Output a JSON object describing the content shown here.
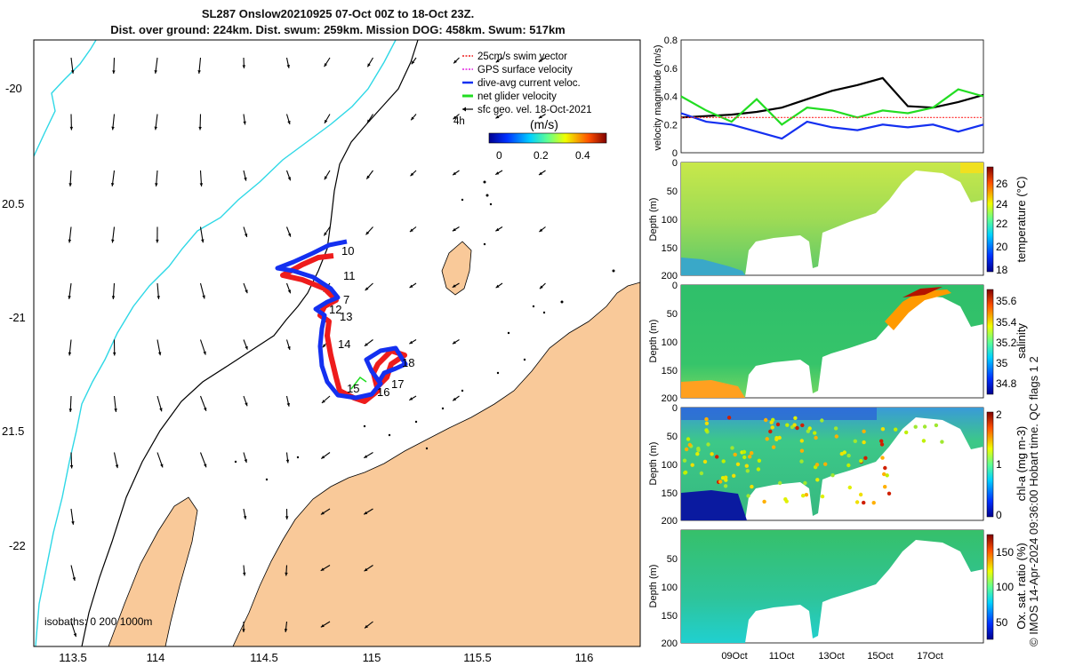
{
  "title": {
    "line1": "SL287 Onslow20210925 07-Oct 00Z to 18-Oct 23Z.",
    "line2": "Dist. over ground: 224km. Dist. swum: 259km. Mission DOG: 458km. Swum: 517km"
  },
  "map": {
    "lon_ticks": [
      "113.5",
      "114",
      "114.5",
      "115",
      "115.5",
      "116"
    ],
    "lat_ticks": [
      "-20",
      "20.5",
      "-21",
      "21.5",
      "-22"
    ],
    "isobath_note": "isobaths: 0   200  1000m",
    "legend": [
      "25cm/s swim vector",
      "GPS surface velocity",
      "dive-avg current veloc.",
      "net glider velocity",
      "sfc geo. vel. 18-Oct-2021"
    ],
    "scale_label": "4h",
    "colorbar_title": "(m/s)",
    "colorbar_ticks": [
      "0",
      "0.2",
      "0.4"
    ],
    "waypoints": [
      "10",
      "11",
      "7",
      "12",
      "13",
      "14",
      "18",
      "17",
      "15",
      "16"
    ],
    "colors": {
      "land": "#f9c999",
      "shelf_isobath": "#000000",
      "coast_isobath": "#2ed8e6",
      "track_red": "#ee1c1c",
      "track_blue": "#1430f0"
    }
  },
  "chart_data": [
    {
      "type": "line",
      "title": "",
      "ylabel": "velocity magnitude (m/s)",
      "ylim": [
        0,
        0.8
      ],
      "y_ticks": [
        "0",
        "0.2",
        "0.4",
        "0.6",
        "0.8"
      ],
      "xlim": [
        "2021-10-07",
        "2021-10-19"
      ],
      "series": [
        {
          "color": "#000000",
          "x": [
            "2021-10-07",
            "2021-10-08",
            "2021-10-09",
            "2021-10-10",
            "2021-10-11",
            "2021-10-12",
            "2021-10-13",
            "2021-10-14",
            "2021-10-15",
            "2021-10-16",
            "2021-10-17",
            "2021-10-18",
            "2021-10-19"
          ],
          "values": [
            0.25,
            0.26,
            0.27,
            0.29,
            0.32,
            0.38,
            0.44,
            0.48,
            0.53,
            0.33,
            0.32,
            0.36,
            0.41
          ]
        },
        {
          "color": "#1430f0",
          "x": [
            "2021-10-07",
            "2021-10-08",
            "2021-10-09",
            "2021-10-10",
            "2021-10-11",
            "2021-10-12",
            "2021-10-13",
            "2021-10-14",
            "2021-10-15",
            "2021-10-16",
            "2021-10-17",
            "2021-10-18",
            "2021-10-19"
          ],
          "values": [
            0.28,
            0.22,
            0.2,
            0.15,
            0.1,
            0.22,
            0.18,
            0.16,
            0.2,
            0.18,
            0.2,
            0.15,
            0.2
          ]
        },
        {
          "color": "#22dd22",
          "x": [
            "2021-10-07",
            "2021-10-08",
            "2021-10-09",
            "2021-10-10",
            "2021-10-11",
            "2021-10-12",
            "2021-10-13",
            "2021-10-14",
            "2021-10-15",
            "2021-10-16",
            "2021-10-17",
            "2021-10-18",
            "2021-10-19"
          ],
          "values": [
            0.4,
            0.3,
            0.22,
            0.38,
            0.2,
            0.32,
            0.3,
            0.25,
            0.3,
            0.28,
            0.32,
            0.45,
            0.4
          ]
        },
        {
          "color": "#ff2d2d",
          "x": [
            "2021-10-07",
            "2021-10-19"
          ],
          "values": [
            0.25,
            0.25
          ]
        }
      ]
    },
    {
      "type": "heatmap",
      "ylabel": "Depth (m)",
      "colorbar_label": "temperature (°C)",
      "colorbar_range": [
        18,
        27
      ],
      "colorbar_ticks": [
        "18",
        "20",
        "22",
        "24",
        "26"
      ],
      "y_ticks": [
        "0",
        "50",
        "100",
        "150",
        "200"
      ]
    },
    {
      "type": "heatmap",
      "ylabel": "Depth (m)",
      "colorbar_label": "salinity",
      "colorbar_range": [
        34.7,
        35.7
      ],
      "colorbar_ticks": [
        "34.8",
        "35",
        "35.2",
        "35.4",
        "35.6"
      ],
      "y_ticks": [
        "0",
        "50",
        "100",
        "150",
        "200"
      ]
    },
    {
      "type": "heatmap",
      "ylabel": "Depth (m)",
      "colorbar_label": "chl-a (mg m-3)",
      "colorbar_range": [
        0,
        2
      ],
      "colorbar_ticks": [
        "0",
        "1",
        "2"
      ],
      "y_ticks": [
        "0",
        "50",
        "100",
        "150",
        "200"
      ]
    },
    {
      "type": "heatmap",
      "ylabel": "Depth (m)",
      "colorbar_label": "Ox. sat. ratio (%)",
      "colorbar_range": [
        25,
        175
      ],
      "colorbar_ticks": [
        "50",
        "100",
        "150"
      ],
      "y_ticks": [
        "50",
        "100",
        "150",
        "200"
      ],
      "x_ticks": [
        "09Oct",
        "11Oct",
        "13Oct",
        "15Oct",
        "17Oct"
      ]
    }
  ],
  "credit": "© IMOS 14-Apr-2024 09:36:00 Hobart time. QC flags 1  2"
}
